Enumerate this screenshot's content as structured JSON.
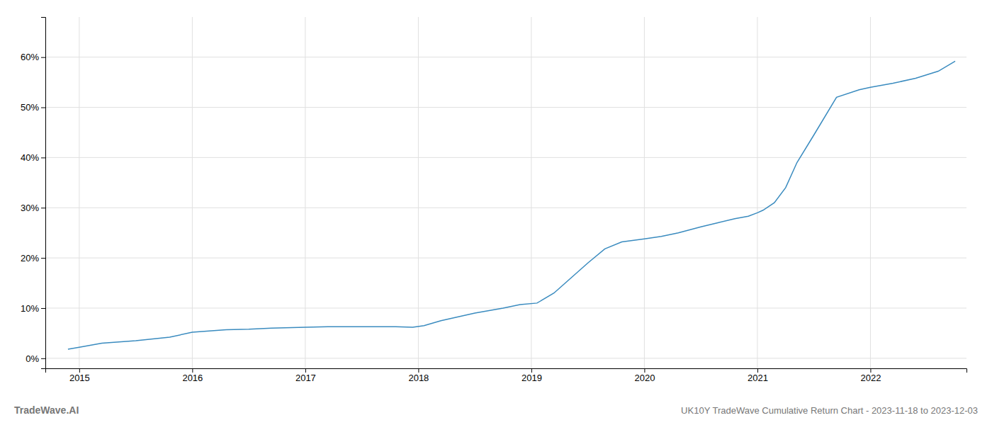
{
  "chart_data": {
    "type": "line",
    "title": "UK10Y TradeWave Cumulative Return Chart - 2023-11-18 to 2023-12-03",
    "annotations": [
      "TradeWave.AI"
    ],
    "color": "#3a8bbf",
    "x": [
      2014.9,
      2015.0,
      2015.2,
      2015.5,
      2015.8,
      2016.0,
      2016.3,
      2016.5,
      2016.7,
      2017.0,
      2017.2,
      2017.5,
      2017.8,
      2017.95,
      2018.05,
      2018.2,
      2018.5,
      2018.75,
      2018.9,
      2019.05,
      2019.2,
      2019.35,
      2019.5,
      2019.65,
      2019.8,
      2020.0,
      2020.15,
      2020.3,
      2020.5,
      2020.65,
      2020.8,
      2020.92,
      2021.0,
      2021.05,
      2021.15,
      2021.25,
      2021.35,
      2021.5,
      2021.7,
      2021.9,
      2022.0,
      2022.2,
      2022.4,
      2022.6,
      2022.75
    ],
    "values": [
      0.018,
      0.022,
      0.03,
      0.035,
      0.042,
      0.052,
      0.057,
      0.058,
      0.06,
      0.062,
      0.063,
      0.063,
      0.063,
      0.062,
      0.065,
      0.075,
      0.09,
      0.1,
      0.107,
      0.11,
      0.13,
      0.16,
      0.19,
      0.218,
      0.232,
      0.238,
      0.243,
      0.25,
      0.262,
      0.27,
      0.278,
      0.283,
      0.29,
      0.295,
      0.31,
      0.34,
      0.39,
      0.445,
      0.52,
      0.535,
      0.54,
      0.548,
      0.558,
      0.572,
      0.592
    ],
    "xlim": [
      2014.7,
      2022.85
    ],
    "ylim": [
      -0.02,
      0.68
    ],
    "xticks": [
      2015,
      2016,
      2017,
      2018,
      2019,
      2020,
      2021,
      2022
    ],
    "yticks": [
      {
        "value": 0.0,
        "label": "0%"
      },
      {
        "value": 0.1,
        "label": "10%"
      },
      {
        "value": 0.2,
        "label": "20%"
      },
      {
        "value": 0.3,
        "label": "30%"
      },
      {
        "value": 0.4,
        "label": "40%"
      },
      {
        "value": 0.5,
        "label": "50%"
      },
      {
        "value": 0.6,
        "label": "60%"
      }
    ],
    "grid": true
  }
}
